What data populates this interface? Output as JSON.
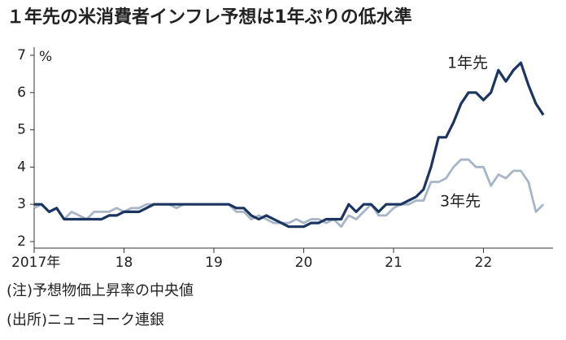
{
  "chart_data": {
    "type": "line",
    "title": "１年先の米消費者インフレ予想は1年ぶりの低水準",
    "ylabel": "%",
    "notes": [
      "(注)予想物価上昇率の中央値",
      "(出所)ニューヨーク連銀"
    ],
    "categories": [
      "2017年",
      null,
      null,
      null,
      null,
      null,
      null,
      null,
      null,
      null,
      null,
      null,
      "18",
      null,
      null,
      null,
      null,
      null,
      null,
      null,
      null,
      null,
      null,
      null,
      "19",
      null,
      null,
      null,
      null,
      null,
      null,
      null,
      null,
      null,
      null,
      null,
      "20",
      null,
      null,
      null,
      null,
      null,
      null,
      null,
      null,
      null,
      null,
      null,
      "21",
      null,
      null,
      null,
      null,
      null,
      null,
      null,
      null,
      null,
      null,
      null,
      "22",
      null,
      null,
      null,
      null,
      null,
      null,
      null,
      null
    ],
    "series": [
      {
        "name": "1年先",
        "color": "#1b3560",
        "values": [
          3.0,
          3.0,
          2.8,
          2.9,
          2.6,
          2.6,
          2.6,
          2.6,
          2.6,
          2.6,
          2.7,
          2.7,
          2.8,
          2.8,
          2.8,
          2.9,
          3.0,
          3.0,
          3.0,
          3.0,
          3.0,
          3.0,
          3.0,
          3.0,
          3.0,
          3.0,
          3.0,
          2.9,
          2.9,
          2.7,
          2.6,
          2.7,
          2.6,
          2.5,
          2.4,
          2.4,
          2.4,
          2.5,
          2.5,
          2.6,
          2.6,
          2.6,
          3.0,
          2.8,
          3.0,
          3.0,
          2.8,
          3.0,
          3.0,
          3.0,
          3.1,
          3.2,
          3.4,
          4.0,
          4.8,
          4.8,
          5.2,
          5.7,
          6.0,
          6.0,
          5.8,
          6.0,
          6.6,
          6.3,
          6.6,
          6.8,
          6.2,
          5.7,
          5.4
        ]
      },
      {
        "name": "3年先",
        "color": "#a7b5c6",
        "values": [
          2.9,
          3.0,
          2.8,
          2.9,
          2.6,
          2.8,
          2.7,
          2.6,
          2.8,
          2.8,
          2.8,
          2.9,
          2.8,
          2.9,
          2.9,
          3.0,
          3.0,
          3.0,
          3.0,
          2.9,
          3.0,
          3.0,
          3.0,
          3.0,
          3.0,
          3.0,
          3.0,
          2.8,
          2.8,
          2.6,
          2.7,
          2.6,
          2.5,
          2.5,
          2.5,
          2.6,
          2.5,
          2.6,
          2.6,
          2.5,
          2.6,
          2.4,
          2.7,
          2.6,
          2.8,
          3.0,
          2.7,
          2.7,
          2.9,
          3.0,
          3.0,
          3.1,
          3.1,
          3.6,
          3.6,
          3.7,
          4.0,
          4.2,
          4.2,
          4.0,
          4.0,
          3.5,
          3.8,
          3.7,
          3.9,
          3.9,
          3.6,
          2.8,
          3.0
        ]
      }
    ],
    "ylim": [
      2,
      7
    ],
    "yticks": [
      2,
      3,
      4,
      5,
      6,
      7
    ],
    "grid": false
  }
}
